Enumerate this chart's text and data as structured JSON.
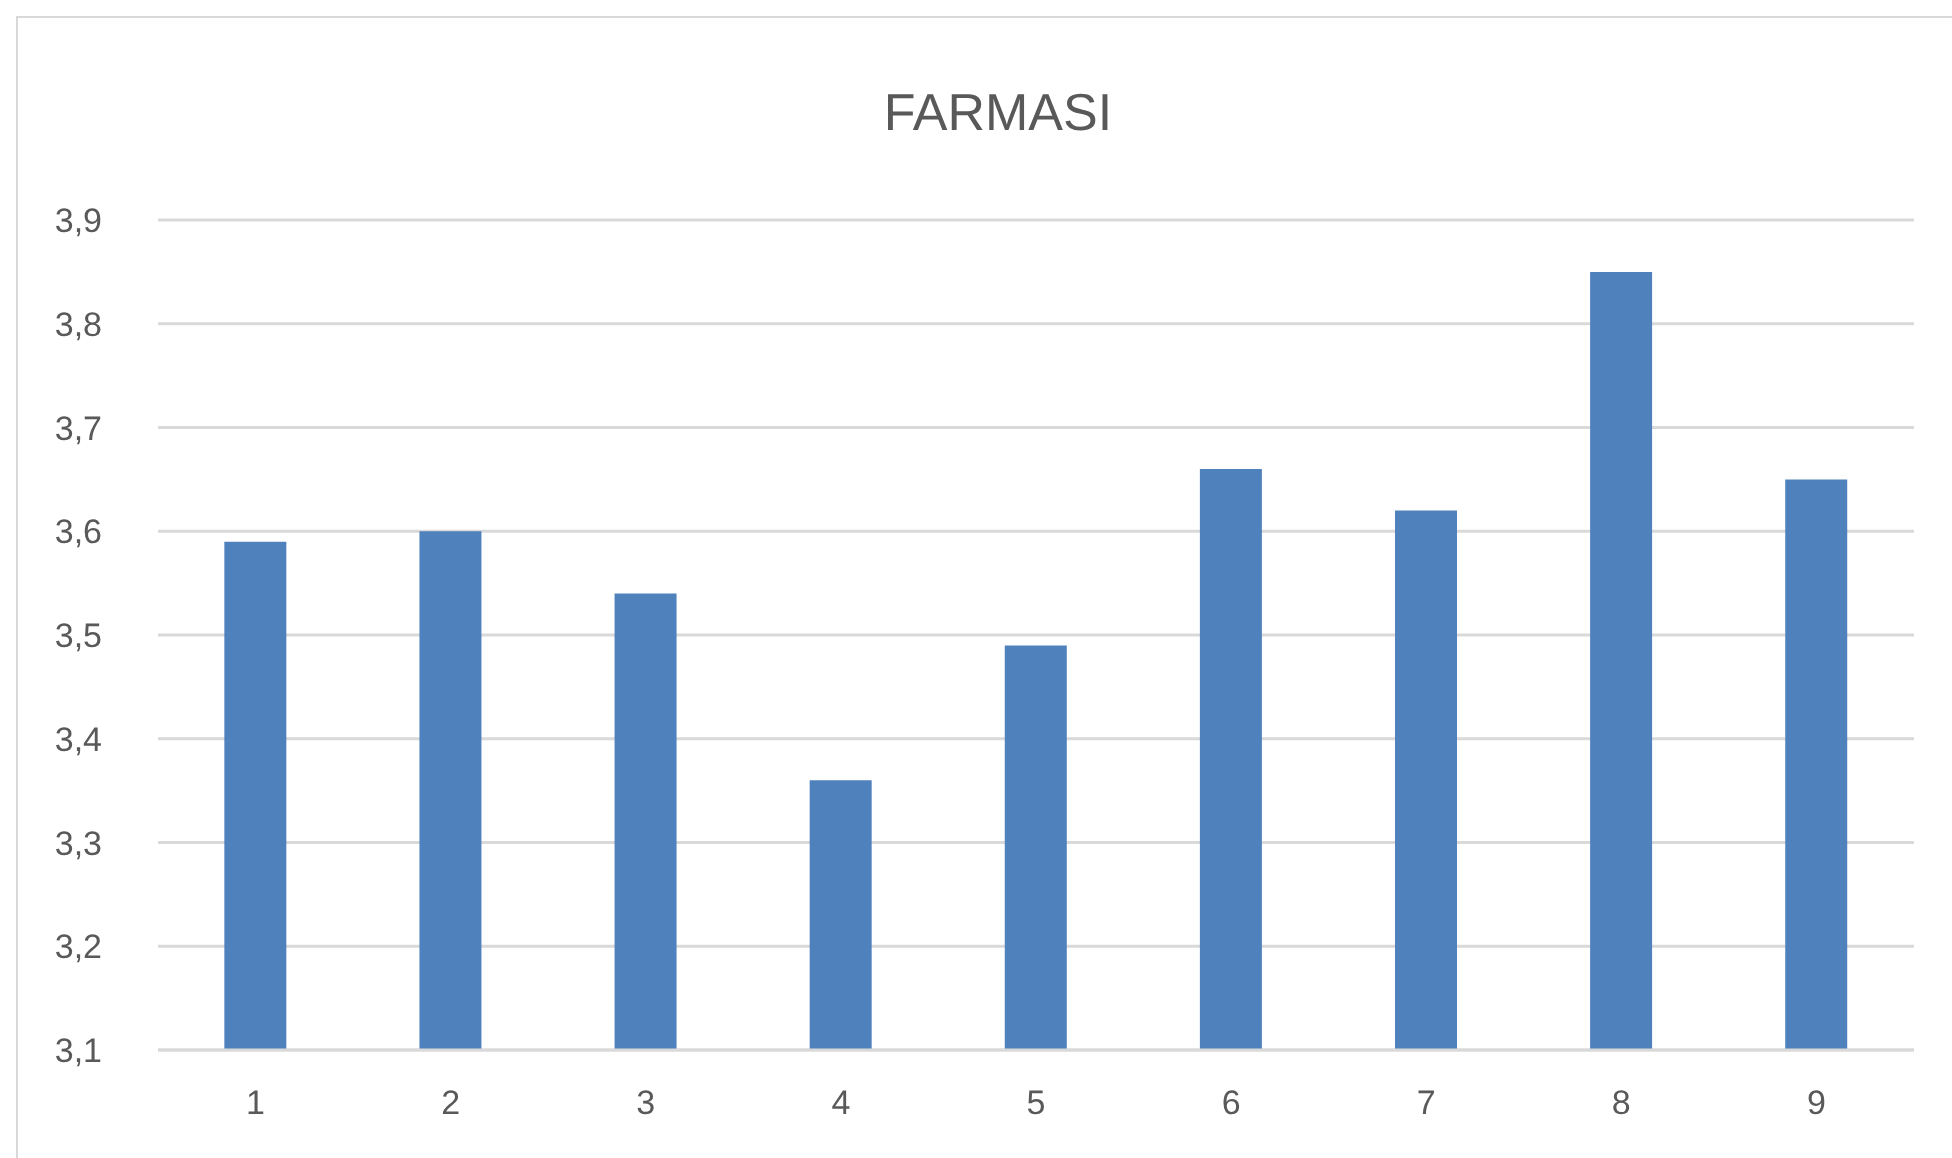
{
  "chart_data": {
    "type": "bar",
    "title": "FARMASI",
    "categories": [
      "1",
      "2",
      "3",
      "4",
      "5",
      "6",
      "7",
      "8",
      "9"
    ],
    "values": [
      3.59,
      3.6,
      3.54,
      3.36,
      3.49,
      3.66,
      3.62,
      3.85,
      3.65
    ],
    "color": "#4f81bd",
    "ylim": [
      3.1,
      3.9
    ],
    "yticks": [
      {
        "value": 3.1,
        "label": "3,1"
      },
      {
        "value": 3.2,
        "label": "3,2"
      },
      {
        "value": 3.3,
        "label": "3,3"
      },
      {
        "value": 3.4,
        "label": "3,4"
      },
      {
        "value": 3.5,
        "label": "3,5"
      },
      {
        "value": 3.6,
        "label": "3,6"
      },
      {
        "value": 3.7,
        "label": "3,7"
      },
      {
        "value": 3.8,
        "label": "3,8"
      },
      {
        "value": 3.9,
        "label": "3,9"
      }
    ],
    "grid": "y"
  }
}
